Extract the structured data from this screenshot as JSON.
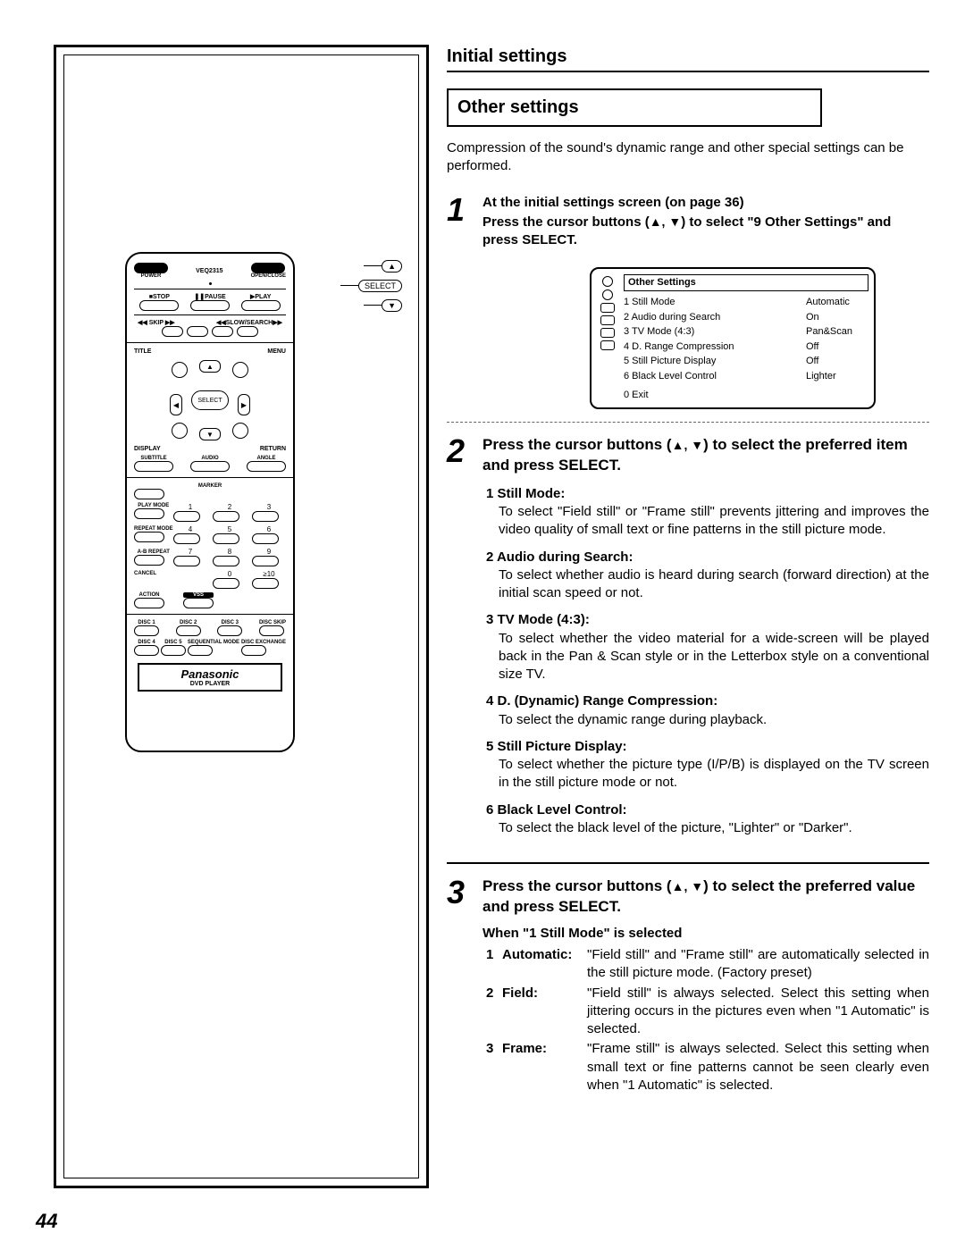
{
  "page_number": "44",
  "remote": {
    "model": "VEQ2315",
    "power": "POWER",
    "open": "OPEN/CLOSE",
    "stop": "■STOP",
    "pause": "❚❚PAUSE",
    "play": "▶PLAY",
    "skip": "◀◀ SKIP ▶▶",
    "slow": "◀◀SLOW/SEARCH▶▶",
    "title": "TITLE",
    "menu": "MENU",
    "select": "SELECT",
    "display": "DISPLAY",
    "return": "RETURN",
    "subtitle": "SUBTITLE",
    "audio": "AUDIO",
    "angle": "ANGLE",
    "marker": "MARKER",
    "playmode": "PLAY MODE",
    "repeatmode": "REPEAT MODE",
    "abrepeat": "A-B REPEAT",
    "cancel": "CANCEL",
    "action": "ACTION",
    "vss": "VSS",
    "nums": [
      "1",
      "2",
      "3",
      "4",
      "5",
      "6",
      "7",
      "8",
      "9",
      "0",
      "≥10"
    ],
    "discskip": "DISC SKIP",
    "disc1": "DISC 1",
    "disc2": "DISC 2",
    "disc3": "DISC 3",
    "disc4": "DISC 4",
    "disc5": "DISC 5",
    "seqmode": "SEQUENTIAL MODE",
    "discex": "DISC EXCHANGE",
    "brand": "Panasonic",
    "sub": "DVD PLAYER",
    "callout_up": "▲",
    "callout_select": "SELECT",
    "callout_down": "▼"
  },
  "right": {
    "section_title": "Initial settings",
    "box_title": "Other settings",
    "intro": "Compression of the sound's dynamic range and other special settings can be performed.",
    "step1": {
      "line1": "At the initial settings screen (on page 36)",
      "line2a": "Press the cursor buttons (",
      "line2b": ") to select \"9 Other Settings\" and press SELECT.",
      "arrows": "▲, ▼"
    },
    "osd": {
      "title": "Other Settings",
      "rows": [
        {
          "k": "1 Still Mode",
          "v": "Automatic"
        },
        {
          "k": "2 Audio during Search",
          "v": "On"
        },
        {
          "k": "3 TV Mode (4:3)",
          "v": "Pan&Scan"
        },
        {
          "k": "4 D. Range Compression",
          "v": "Off"
        },
        {
          "k": "5 Still Picture Display",
          "v": "Off"
        },
        {
          "k": "6 Black Level Control",
          "v": "Lighter"
        }
      ],
      "exit": "0 Exit"
    },
    "step2": {
      "head_a": "Press the cursor buttons (",
      "head_b": ") to select the preferred item and press SELECT.",
      "arrows": "▲, ▼",
      "items": [
        {
          "n": "1",
          "h": "Still Mode:",
          "d": "To select \"Field still\" or \"Frame still\" prevents jittering and improves the video quality of small text or fine patterns in the still picture mode."
        },
        {
          "n": "2",
          "h": "Audio during Search:",
          "d": "To select whether audio is heard during search (forward direction) at the initial scan speed or not."
        },
        {
          "n": "3",
          "h": "TV Mode (4:3):",
          "d": "To select whether the video material for a wide-screen will be played back in the Pan & Scan style or in the Letterbox style on a conventional size TV."
        },
        {
          "n": "4",
          "h": "D. (Dynamic) Range Compression:",
          "d": "To select the dynamic range during playback."
        },
        {
          "n": "5",
          "h": "Still Picture Display:",
          "d": "To select whether the picture type (I/P/B) is displayed on the TV screen in the still picture mode or not."
        },
        {
          "n": "6",
          "h": "Black Level Control:",
          "d": "To select the black level of the picture, \"Lighter\" or \"Darker\"."
        }
      ]
    },
    "step3": {
      "head_a": "Press the cursor buttons (",
      "head_b": ") to select the preferred value and press SELECT.",
      "arrows": "▲, ▼",
      "when": "When \"1 Still Mode\" is selected",
      "vals": [
        {
          "n": "1",
          "l": "Automatic:",
          "d": "\"Field still\" and \"Frame still\" are automatically selected in the still picture mode. (Factory preset)"
        },
        {
          "n": "2",
          "l": "Field:",
          "d": "\"Field still\" is always selected. Select this setting when jittering occurs in the pictures even when \"1 Automatic\" is selected."
        },
        {
          "n": "3",
          "l": "Frame:",
          "d": "\"Frame still\" is always selected. Select this setting when small text or fine patterns cannot be seen clearly even when \"1 Automatic\" is selected."
        }
      ]
    }
  }
}
